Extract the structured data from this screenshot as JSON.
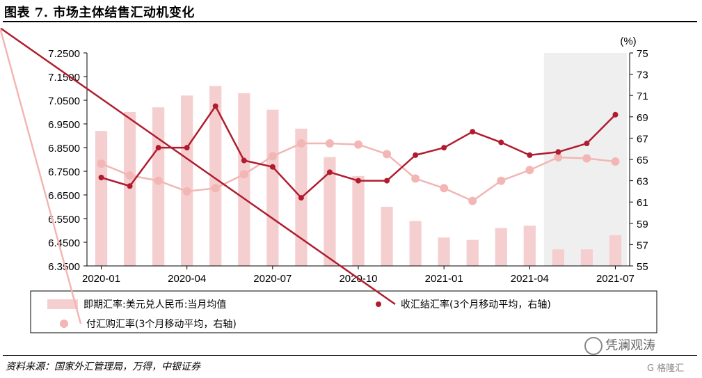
{
  "header": {
    "title": "图表 7. 市场主体结售汇动机变化"
  },
  "footer": {
    "source": "资料来源：国家外汇管理局，万得，中银证券",
    "watermark": "凭澜观涛",
    "watermark2": "G 格隆汇"
  },
  "chart_data": {
    "type": "bar+line",
    "x": [
      "2020-01",
      "2020-02",
      "2020-03",
      "2020-04",
      "2020-05",
      "2020-06",
      "2020-07",
      "2020-08",
      "2020-09",
      "2020-10",
      "2020-11",
      "2020-12",
      "2021-01",
      "2021-02",
      "2021-03",
      "2021-04",
      "2021-05",
      "2021-06",
      "2021-07"
    ],
    "xtick_labels": [
      "2020-01",
      "2020-04",
      "2020-07",
      "2020-10",
      "2021-01",
      "2021-04",
      "2021-07"
    ],
    "xtick_index": [
      0,
      3,
      6,
      9,
      12,
      15,
      18
    ],
    "left_axis": {
      "ylim": [
        6.35,
        7.25
      ],
      "ticks": [
        "7.2500",
        "7.1500",
        "7.0500",
        "6.9500",
        "6.8500",
        "6.7500",
        "6.6500",
        "6.5500",
        "6.4500",
        "6.3500"
      ],
      "tick_values": [
        7.25,
        7.15,
        7.05,
        6.95,
        6.85,
        6.75,
        6.65,
        6.55,
        6.45,
        6.35
      ]
    },
    "right_axis": {
      "ylim": [
        55,
        75
      ],
      "unit": "(%)",
      "ticks": [
        "75",
        "73",
        "71",
        "69",
        "67",
        "65",
        "63",
        "61",
        "59",
        "57",
        "55"
      ],
      "tick_values": [
        75,
        73,
        71,
        69,
        67,
        65,
        63,
        61,
        59,
        57,
        55
      ]
    },
    "shaded_region": {
      "from_index": 16,
      "to_index": 18
    },
    "series": [
      {
        "name": "即期汇率:美元兑人民币:当月均值",
        "kind": "bar",
        "axis": "left",
        "color": "#f5cfcf",
        "values": [
          6.92,
          7.0,
          7.02,
          7.07,
          7.11,
          7.08,
          7.01,
          6.93,
          6.81,
          6.73,
          6.6,
          6.54,
          6.47,
          6.46,
          6.51,
          6.52,
          6.42,
          6.42,
          6.48
        ]
      },
      {
        "name": "收汇结汇率(3个月移动平均，右轴)",
        "kind": "line",
        "axis": "right",
        "color": "#b01c2e",
        "values": [
          63.3,
          62.5,
          66.1,
          66.1,
          70.0,
          64.9,
          64.3,
          61.4,
          63.8,
          63.0,
          63.0,
          65.4,
          66.1,
          67.6,
          66.6,
          65.4,
          65.7,
          66.5,
          69.2
        ]
      },
      {
        "name": "付汇购汇率(3个月移动平均，右轴)",
        "kind": "line",
        "axis": "right",
        "color": "#f2b6b4",
        "values": [
          64.6,
          63.5,
          63.0,
          62.0,
          62.3,
          63.6,
          65.3,
          66.5,
          66.5,
          66.4,
          65.5,
          63.2,
          62.3,
          61.1,
          63.0,
          64.0,
          65.2,
          65.1,
          64.8
        ]
      }
    ],
    "legend": {
      "bar_label": "即期汇率:美元兑人民币:当月均值",
      "line1_label": "收汇结汇率(3个月移动平均，右轴)",
      "line2_label": "付汇购汇率(3个月移动平均，右轴)"
    }
  }
}
